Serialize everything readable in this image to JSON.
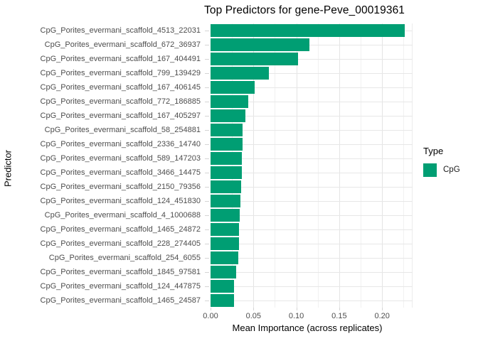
{
  "chart_data": {
    "type": "bar",
    "orientation": "horizontal",
    "title": "Top Predictors for gene-Peve_00019361",
    "xlabel": "Mean Importance (across replicates)",
    "ylabel": "Predictor",
    "categories": [
      "CpG_Porites_evermani_scaffold_4513_22031",
      "CpG_Porites_evermani_scaffold_672_36937",
      "CpG_Porites_evermani_scaffold_167_404491",
      "CpG_Porites_evermani_scaffold_799_139429",
      "CpG_Porites_evermani_scaffold_167_406145",
      "CpG_Porites_evermani_scaffold_772_186885",
      "CpG_Porites_evermani_scaffold_167_405297",
      "CpG_Porites_evermani_scaffold_58_254881",
      "CpG_Porites_evermani_scaffold_2336_14740",
      "CpG_Porites_evermani_scaffold_589_147203",
      "CpG_Porites_evermani_scaffold_3466_14475",
      "CpG_Porites_evermani_scaffold_2150_79356",
      "CpG_Porites_evermani_scaffold_124_451830",
      "CpG_Porites_evermani_scaffold_4_1000688",
      "CpG_Porites_evermani_scaffold_1465_24872",
      "CpG_Porites_evermani_scaffold_228_274405",
      "CpG_Porites_evermani_scaffold_254_6055",
      "CpG_Porites_evermani_scaffold_1845_97581",
      "CpG_Porites_evermani_scaffold_124_447875",
      "CpG_Porites_evermani_scaffold_1465_24587"
    ],
    "values": [
      0.226,
      0.115,
      0.102,
      0.068,
      0.051,
      0.044,
      0.041,
      0.0375,
      0.0375,
      0.0366,
      0.0363,
      0.036,
      0.035,
      0.034,
      0.0335,
      0.0335,
      0.032,
      0.0297,
      0.0275,
      0.0275
    ],
    "series_name": "CpG",
    "bar_color": "#009E73",
    "xlim": [
      0,
      0.2355
    ],
    "x_ticks": [
      {
        "value": 0.0,
        "label": "0.00"
      },
      {
        "value": 0.05,
        "label": "0.05"
      },
      {
        "value": 0.1,
        "label": "0.10"
      },
      {
        "value": 0.15,
        "label": "0.15"
      },
      {
        "value": 0.2,
        "label": "0.20"
      }
    ],
    "x_minor_ticks": [
      0.025,
      0.075,
      0.125,
      0.175,
      0.225
    ],
    "grid": true,
    "legend": {
      "position": "right",
      "title": "Type",
      "entries": [
        {
          "label": "CpG",
          "color": "#009E73"
        }
      ]
    }
  }
}
